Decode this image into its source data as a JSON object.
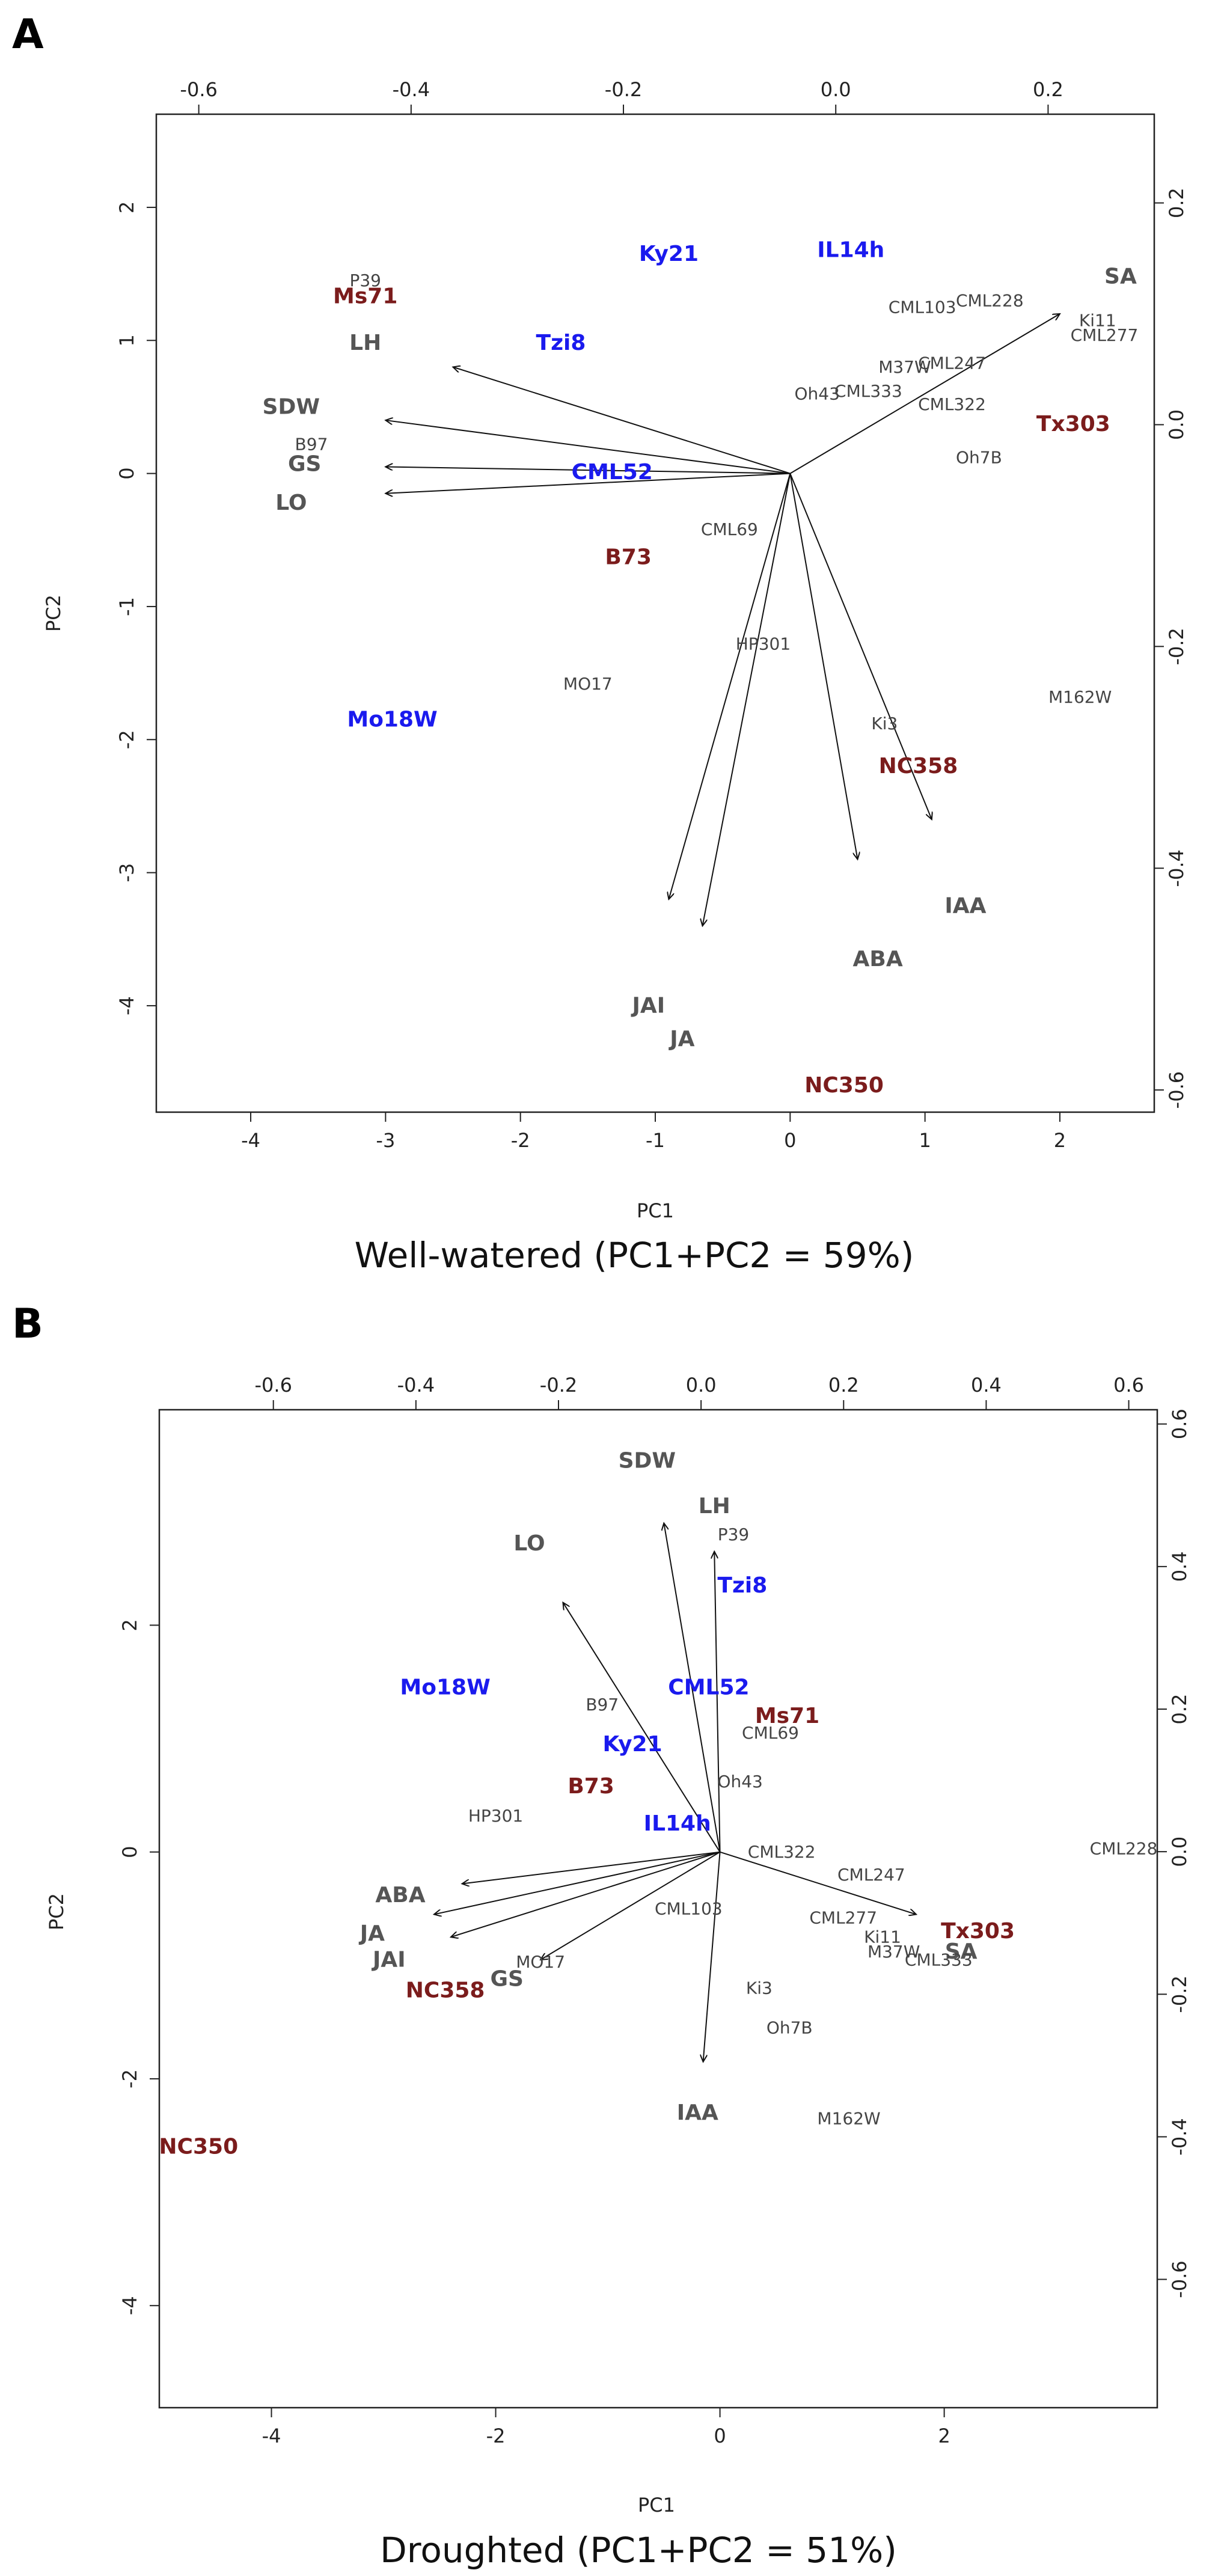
{
  "colors": {
    "trait": "#555555",
    "red_line": "#7b1c1c",
    "blue_line": "#1a1aee",
    "other_line": "#444444",
    "axis": "#222222"
  },
  "chart_data": [
    {
      "panel_label": "A",
      "type": "scatter",
      "subtype": "biplot",
      "caption": "Well-watered (PC1+PC2 = 59%)",
      "xlabel": "PC1",
      "ylabel": "PC2",
      "xlim": [
        -4.7,
        2.7
      ],
      "ylim": [
        -4.8,
        2.7
      ],
      "top_axis_lim": [
        -0.64,
        0.3
      ],
      "right_axis_lim": [
        -0.62,
        0.28
      ],
      "xticks": [
        "-4",
        "-3",
        "-2",
        "-1",
        "0",
        "1",
        "2"
      ],
      "yticks": [
        "-4",
        "-3",
        "-2",
        "-1",
        "0",
        "1",
        "2"
      ],
      "top_ticks": [
        "-0.6",
        "-0.4",
        "-0.2",
        "0.0",
        "0.2"
      ],
      "right_ticks": [
        "-0.6",
        "-0.4",
        "-0.2",
        "0.0",
        "0.2"
      ],
      "vectors": [
        {
          "x": -2.5,
          "y": 0.8
        },
        {
          "x": -3.0,
          "y": 0.4
        },
        {
          "x": -3.0,
          "y": 0.05
        },
        {
          "x": -3.0,
          "y": -0.15
        },
        {
          "x": 2.0,
          "y": 1.2
        },
        {
          "x": -0.9,
          "y": -3.2
        },
        {
          "x": -0.65,
          "y": -3.4
        },
        {
          "x": 0.5,
          "y": -2.9
        },
        {
          "x": 1.05,
          "y": -2.6
        }
      ],
      "points": [
        {
          "label": "SA",
          "x": 2.45,
          "y": 1.48,
          "group": "trait"
        },
        {
          "label": "LH",
          "x": -3.15,
          "y": 0.98,
          "group": "trait"
        },
        {
          "label": "SDW",
          "x": -3.7,
          "y": 0.5,
          "group": "trait"
        },
        {
          "label": "GS",
          "x": -3.6,
          "y": 0.07,
          "group": "trait"
        },
        {
          "label": "LO",
          "x": -3.7,
          "y": -0.22,
          "group": "trait"
        },
        {
          "label": "IAA",
          "x": 1.3,
          "y": -3.25,
          "group": "trait"
        },
        {
          "label": "ABA",
          "x": 0.65,
          "y": -3.65,
          "group": "trait"
        },
        {
          "label": "JAI",
          "x": -1.05,
          "y": -4.0,
          "group": "trait"
        },
        {
          "label": "JA",
          "x": -0.8,
          "y": -4.25,
          "group": "trait"
        },
        {
          "label": "Ms71",
          "x": -3.15,
          "y": 1.33,
          "group": "red"
        },
        {
          "label": "Tx303",
          "x": 2.1,
          "y": 0.37,
          "group": "red"
        },
        {
          "label": "B73",
          "x": -1.2,
          "y": -0.63,
          "group": "red"
        },
        {
          "label": "NC358",
          "x": 0.95,
          "y": -2.2,
          "group": "red"
        },
        {
          "label": "NC350",
          "x": 0.4,
          "y": -4.6,
          "group": "red"
        },
        {
          "label": "Ky21",
          "x": -0.9,
          "y": 1.65,
          "group": "blue"
        },
        {
          "label": "IL14h",
          "x": 0.45,
          "y": 1.68,
          "group": "blue"
        },
        {
          "label": "Tzi8",
          "x": -1.7,
          "y": 0.98,
          "group": "blue"
        },
        {
          "label": "CML52",
          "x": -1.32,
          "y": 0.01,
          "group": "blue"
        },
        {
          "label": "Mo18W",
          "x": -2.95,
          "y": -1.85,
          "group": "blue"
        },
        {
          "label": "P39",
          "x": -3.15,
          "y": 1.45,
          "group": "other"
        },
        {
          "label": "B97",
          "x": -3.55,
          "y": 0.22,
          "group": "other"
        },
        {
          "label": "CML103",
          "x": 0.98,
          "y": 1.25,
          "group": "other"
        },
        {
          "label": "CML228",
          "x": 1.48,
          "y": 1.3,
          "group": "other"
        },
        {
          "label": "Ki11",
          "x": 2.28,
          "y": 1.15,
          "group": "other"
        },
        {
          "label": "CML277",
          "x": 2.33,
          "y": 1.04,
          "group": "other"
        },
        {
          "label": "M37W",
          "x": 0.85,
          "y": 0.8,
          "group": "other"
        },
        {
          "label": "CML247",
          "x": 1.2,
          "y": 0.83,
          "group": "other"
        },
        {
          "label": "Oh43",
          "x": 0.2,
          "y": 0.6,
          "group": "other"
        },
        {
          "label": "CML333",
          "x": 0.58,
          "y": 0.62,
          "group": "other"
        },
        {
          "label": "CML322",
          "x": 1.2,
          "y": 0.52,
          "group": "other"
        },
        {
          "label": "Oh7B",
          "x": 1.4,
          "y": 0.12,
          "group": "other"
        },
        {
          "label": "CML69",
          "x": -0.45,
          "y": -0.42,
          "group": "other"
        },
        {
          "label": "HP301",
          "x": -0.2,
          "y": -1.28,
          "group": "other"
        },
        {
          "label": "MO17",
          "x": -1.5,
          "y": -1.58,
          "group": "other"
        },
        {
          "label": "Ki3",
          "x": 0.7,
          "y": -1.88,
          "group": "other"
        },
        {
          "label": "M162W",
          "x": 2.15,
          "y": -1.68,
          "group": "other"
        }
      ]
    },
    {
      "panel_label": "B",
      "type": "scatter",
      "subtype": "biplot",
      "caption": "Droughted (PC1+PC2 = 51%)",
      "xlabel": "PC1",
      "ylabel": "PC2",
      "xlim": [
        -5.0,
        3.9
      ],
      "ylim": [
        -4.9,
        3.9
      ],
      "top_axis_lim": [
        -0.76,
        0.64
      ],
      "right_axis_lim": [
        -0.78,
        0.62
      ],
      "xticks": [
        "-4",
        "-2",
        "0",
        "2"
      ],
      "yticks": [
        "-4",
        "-2",
        "0",
        "2"
      ],
      "top_ticks": [
        "-0.6",
        "-0.4",
        "-0.2",
        "0.0",
        "0.2",
        "0.4",
        "0.6"
      ],
      "right_ticks": [
        "-0.6",
        "-0.4",
        "-0.2",
        "0.0",
        "0.2",
        "0.4",
        "0.6"
      ],
      "vectors": [
        {
          "x": -0.5,
          "y": 2.9
        },
        {
          "x": -1.4,
          "y": 2.2
        },
        {
          "x": -0.05,
          "y": 2.65
        },
        {
          "x": 1.75,
          "y": -0.55
        },
        {
          "x": -2.3,
          "y": -0.28
        },
        {
          "x": -2.55,
          "y": -0.55
        },
        {
          "x": -2.4,
          "y": -0.75
        },
        {
          "x": -1.6,
          "y": -0.95
        },
        {
          "x": -0.15,
          "y": -1.85
        }
      ],
      "points": [
        {
          "label": "SDW",
          "x": -0.65,
          "y": 3.45,
          "group": "trait"
        },
        {
          "label": "LH",
          "x": -0.05,
          "y": 3.05,
          "group": "trait"
        },
        {
          "label": "LO",
          "x": -1.7,
          "y": 2.72,
          "group": "trait"
        },
        {
          "label": "ABA",
          "x": -2.85,
          "y": -0.38,
          "group": "trait"
        },
        {
          "label": "JA",
          "x": -3.1,
          "y": -0.72,
          "group": "trait"
        },
        {
          "label": "JAI",
          "x": -2.95,
          "y": -0.95,
          "group": "trait"
        },
        {
          "label": "GS",
          "x": -1.9,
          "y": -1.12,
          "group": "trait"
        },
        {
          "label": "SA",
          "x": 2.15,
          "y": -0.88,
          "group": "trait"
        },
        {
          "label": "IAA",
          "x": -0.2,
          "y": -2.3,
          "group": "trait"
        },
        {
          "label": "Ms71",
          "x": 0.6,
          "y": 1.2,
          "group": "red"
        },
        {
          "label": "B73",
          "x": -1.15,
          "y": 0.58,
          "group": "red"
        },
        {
          "label": "Tx303",
          "x": 2.3,
          "y": -0.7,
          "group": "red"
        },
        {
          "label": "NC358",
          "x": -2.45,
          "y": -1.22,
          "group": "red"
        },
        {
          "label": "NC350",
          "x": -4.65,
          "y": -2.6,
          "group": "red"
        },
        {
          "label": "Tzi8",
          "x": 0.2,
          "y": 2.35,
          "group": "blue"
        },
        {
          "label": "CML52",
          "x": -0.1,
          "y": 1.45,
          "group": "blue"
        },
        {
          "label": "Mo18W",
          "x": -2.45,
          "y": 1.45,
          "group": "blue"
        },
        {
          "label": "Ky21",
          "x": -0.78,
          "y": 0.95,
          "group": "blue"
        },
        {
          "label": "IL14h",
          "x": -0.38,
          "y": 0.25,
          "group": "blue"
        },
        {
          "label": "P39",
          "x": 0.12,
          "y": 2.8,
          "group": "other"
        },
        {
          "label": "B97",
          "x": -1.05,
          "y": 1.3,
          "group": "other"
        },
        {
          "label": "CML69",
          "x": 0.45,
          "y": 1.05,
          "group": "other"
        },
        {
          "label": "Oh43",
          "x": 0.18,
          "y": 0.62,
          "group": "other"
        },
        {
          "label": "HP301",
          "x": -2.0,
          "y": 0.32,
          "group": "other"
        },
        {
          "label": "CML322",
          "x": 0.55,
          "y": 0.0,
          "group": "other"
        },
        {
          "label": "CML247",
          "x": 1.35,
          "y": -0.2,
          "group": "other"
        },
        {
          "label": "CML228",
          "x": 3.6,
          "y": 0.03,
          "group": "other"
        },
        {
          "label": "CML103",
          "x": -0.28,
          "y": -0.5,
          "group": "other"
        },
        {
          "label": "CML277",
          "x": 1.1,
          "y": -0.58,
          "group": "other"
        },
        {
          "label": "Ki11",
          "x": 1.45,
          "y": -0.75,
          "group": "other"
        },
        {
          "label": "M37W",
          "x": 1.55,
          "y": -0.88,
          "group": "other"
        },
        {
          "label": "CML333",
          "x": 1.95,
          "y": -0.95,
          "group": "other"
        },
        {
          "label": "MO17",
          "x": -1.6,
          "y": -0.97,
          "group": "other"
        },
        {
          "label": "Ki3",
          "x": 0.35,
          "y": -1.2,
          "group": "other"
        },
        {
          "label": "Oh7B",
          "x": 0.62,
          "y": -1.55,
          "group": "other"
        },
        {
          "label": "M162W",
          "x": 1.15,
          "y": -2.35,
          "group": "other"
        }
      ]
    }
  ]
}
